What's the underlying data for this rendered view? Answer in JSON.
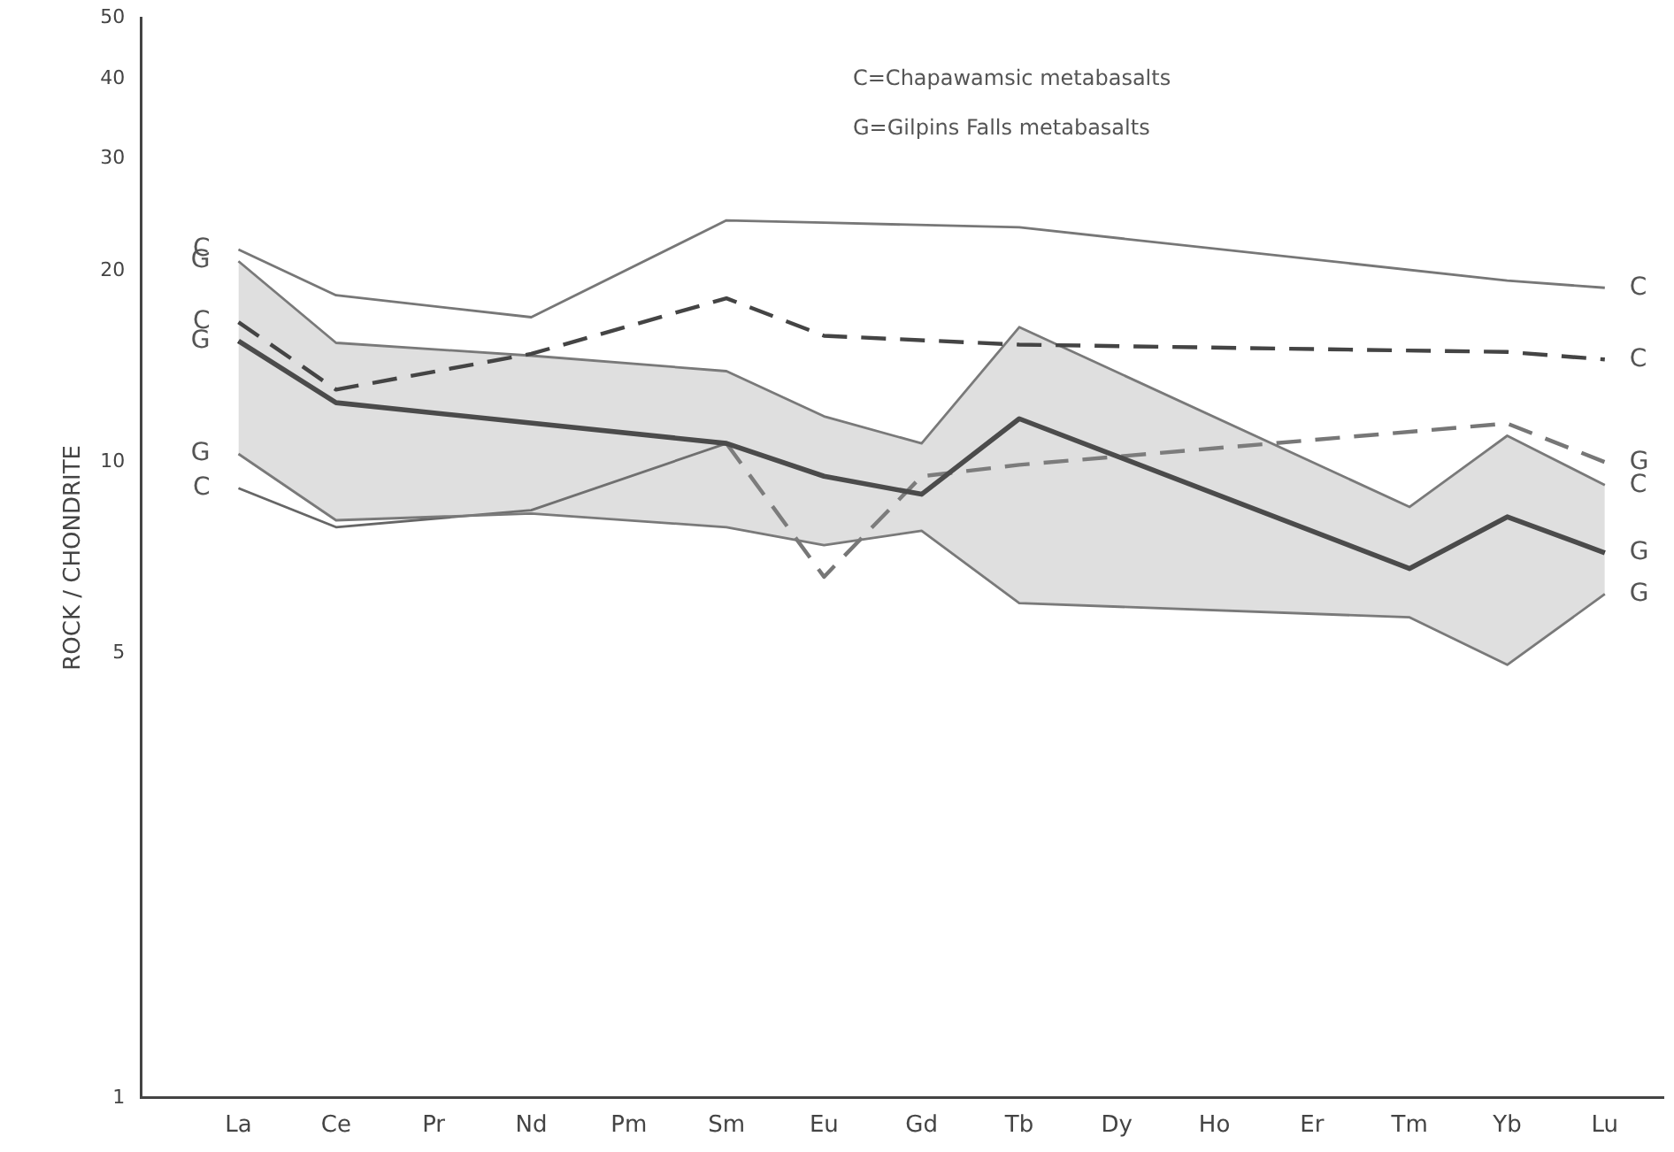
{
  "chart_data": {
    "type": "line",
    "categories": [
      "La",
      "Ce",
      "Pr",
      "Nd",
      "Pm",
      "Sm",
      "Eu",
      "Gd",
      "Tb",
      "Dy",
      "Ho",
      "Er",
      "Tm",
      "Yb",
      "Lu"
    ],
    "series": [
      {
        "color": "#777777",
        "line_style": "solid",
        "values": [
          21.6,
          18.3,
          null,
          16.9,
          null,
          24.0,
          23.8,
          null,
          23.4,
          null,
          null,
          null,
          null,
          19.3,
          18.8
        ]
      },
      {
        "color": "#444444",
        "line_style": "dashed",
        "values": [
          16.6,
          13.0,
          null,
          14.8,
          null,
          18.1,
          15.8,
          null,
          15.3,
          null,
          null,
          null,
          null,
          14.9,
          14.5
        ]
      },
      {
        "color": "#333333",
        "line_style": "solid",
        "values": [
          15.5,
          12.4,
          null,
          null,
          null,
          10.7,
          9.5,
          8.9,
          11.7,
          null,
          null,
          null,
          6.8,
          8.2,
          7.2
        ],
        "upper": [
          20.7,
          15.4,
          null,
          14.7,
          null,
          13.9,
          11.8,
          10.7,
          16.3,
          null,
          null,
          null,
          8.5,
          11.0,
          9.2
        ],
        "lower": [
          10.3,
          8.1,
          null,
          8.3,
          null,
          7.9,
          7.4,
          7.8,
          6.0,
          null,
          null,
          null,
          5.7,
          4.8,
          6.2
        ]
      },
      {
        "color": "#777777",
        "line_style": "solid",
        "values": [
          20.7,
          15.4,
          null,
          14.7,
          null,
          13.9,
          11.8,
          10.7,
          16.3,
          null,
          null,
          null,
          8.5,
          11.0,
          9.2
        ]
      },
      {
        "color": "#777777",
        "line_style": "solid",
        "values": [
          10.3,
          8.1,
          null,
          8.3,
          null,
          7.9,
          7.4,
          7.8,
          6.0,
          null,
          null,
          null,
          5.7,
          4.8,
          6.2
        ]
      },
      {
        "color": "#777777",
        "line_style": "dashed",
        "values": [
          null,
          null,
          null,
          null,
          null,
          10.7,
          6.6,
          9.5,
          9.9,
          null,
          null,
          null,
          null,
          11.5,
          10.0
        ]
      },
      {
        "color": "#666666",
        "line_style": "solid",
        "values": [
          9.1,
          7.9,
          null,
          8.4,
          null,
          10.7,
          null,
          null,
          null,
          null,
          null,
          null,
          null,
          null,
          null
        ]
      }
    ],
    "ylabel": "ROCK / CHONDRITE",
    "log": true,
    "ylim": [
      1,
      50
    ],
    "yticks": [
      1,
      5,
      10,
      20,
      30,
      40,
      50
    ],
    "grid": false,
    "legend": false,
    "marker": "none",
    "annotations": [
      "C=Chapawamsic metabasalts",
      "G=Gilpins Falls metabasalts",
      {
        "text": "C",
        "x": "La",
        "y": 21.6
      },
      {
        "text": "G",
        "x": "La",
        "y": 20.7
      },
      {
        "text": "C",
        "x": "La",
        "y": 16.6
      },
      {
        "text": "G",
        "x": "La",
        "y": 15.5
      },
      {
        "text": "G",
        "x": "La",
        "y": 10.3
      },
      {
        "text": "C",
        "x": "La",
        "y": 9.1
      },
      {
        "text": "C",
        "x": "Lu",
        "y": 18.8
      },
      {
        "text": "C",
        "x": "Lu",
        "y": 14.5
      },
      {
        "text": "G",
        "x": "Lu",
        "y": 10.0
      },
      {
        "text": "C",
        "x": "Lu",
        "y": 9.2
      },
      {
        "text": "G",
        "x": "Lu",
        "y": 7.2
      },
      {
        "text": "G",
        "x": "Lu",
        "y": 6.2
      }
    ]
  }
}
